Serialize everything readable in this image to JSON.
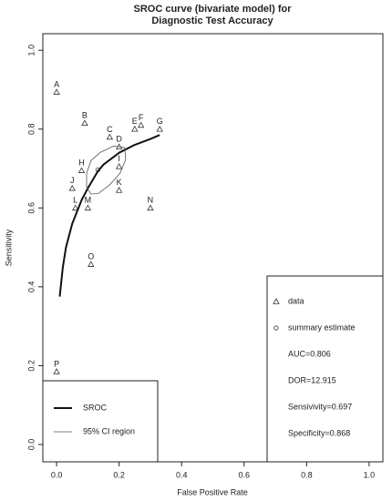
{
  "chart_data": {
    "type": "scatter",
    "title": "SROC curve (bivariate model) for",
    "subtitle": "Diagnostic Test Accuracy",
    "x_label": "False Positive Rate",
    "y_label": "Sensitivity",
    "xlim": [
      -0.044,
      1.044
    ],
    "ylim": [
      -0.044,
      1.042
    ],
    "xticks": [
      {
        "value": 0,
        "label": "0.0"
      },
      {
        "value": 0.2,
        "label": "0.2"
      },
      {
        "value": 0.4,
        "label": "0.4"
      },
      {
        "value": 0.6,
        "label": "0.6"
      },
      {
        "value": 0.8,
        "label": "0.8"
      },
      {
        "value": 1,
        "label": "1.0"
      }
    ],
    "yticks": [
      {
        "value": 0,
        "label": "0.0"
      },
      {
        "value": 0.2,
        "label": "0.2"
      },
      {
        "value": 0.4,
        "label": "0.4"
      },
      {
        "value": 0.6,
        "label": "0.6"
      },
      {
        "value": 0.8,
        "label": "0.8"
      },
      {
        "value": 1,
        "label": "1.0"
      }
    ],
    "series": [
      {
        "name": "data",
        "kind": "triangle",
        "color": "#333333",
        "legend": "bottom-right",
        "point_labels": [
          "A",
          "B",
          "C",
          "D",
          "E",
          "F",
          "G",
          "H",
          "I",
          "J",
          "K",
          "L",
          "M",
          "N",
          "O",
          "P"
        ],
        "x": [
          0.0,
          0.09,
          0.17,
          0.2,
          0.25,
          0.27,
          0.33,
          0.08,
          0.2,
          0.05,
          0.2,
          0.06,
          0.1,
          0.3,
          0.11,
          0.0
        ],
        "y": [
          0.894,
          0.815,
          0.78,
          0.755,
          0.8,
          0.81,
          0.8,
          0.695,
          0.705,
          0.65,
          0.645,
          0.6,
          0.6,
          0.6,
          0.457,
          0.185
        ]
      },
      {
        "name": "summary estimate",
        "kind": "circle",
        "color": "#333333",
        "legend": "bottom-right",
        "x": [
          0.132
        ],
        "y": [
          0.697
        ]
      },
      {
        "name": "SROC",
        "kind": "line",
        "color": "#111111",
        "width": 2,
        "legend": "bottom-left",
        "x": [
          0.01,
          0.02,
          0.03,
          0.05,
          0.08,
          0.1,
          0.132,
          0.15,
          0.2,
          0.25,
          0.3,
          0.33
        ],
        "y": [
          0.375,
          0.45,
          0.5,
          0.56,
          0.62,
          0.65,
          0.693,
          0.71,
          0.74,
          0.76,
          0.775,
          0.785
        ]
      },
      {
        "name": "95% CI region",
        "kind": "region",
        "color": "#555555",
        "width": 0.8,
        "legend": "bottom-left",
        "x": [
          0.218,
          0.183,
          0.14,
          0.11,
          0.096,
          0.096,
          0.11,
          0.134,
          0.169,
          0.203,
          0.221
        ],
        "y": [
          0.753,
          0.757,
          0.741,
          0.72,
          0.688,
          0.654,
          0.635,
          0.637,
          0.658,
          0.688,
          0.723
        ]
      }
    ],
    "annotations": [
      "AUC=0.806",
      "DOR=12.915",
      "Sensivivity=0.697",
      "Specificity=0.868"
    ]
  }
}
